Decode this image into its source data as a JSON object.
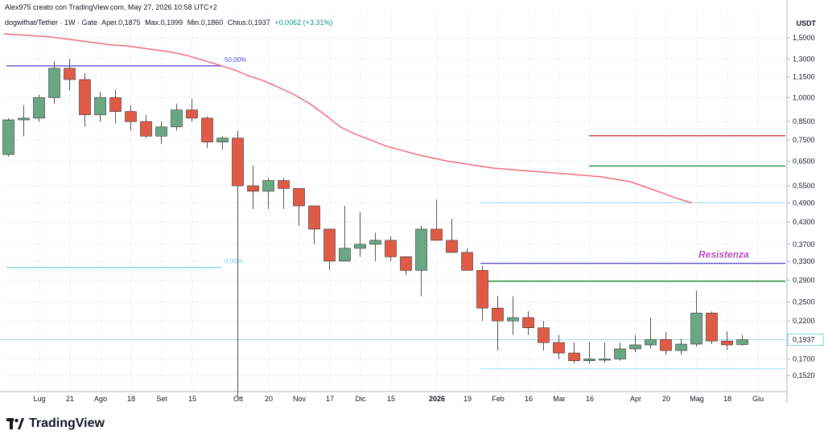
{
  "header": {
    "credit": "Alex975 creato con TradingView.com, May 27, 2026 10:58 UTC+2"
  },
  "symbol": {
    "name": "dogwifhat/Tether · 1W · Gate",
    "open_label": "O",
    "open_value": "Aper.0,1875",
    "high_label": "H",
    "high_value": "Max.0,1999",
    "low_label": "L",
    "low_value": "Min.0,1860",
    "close_label": "C",
    "close_value": "Chius.0,1937",
    "change": "+0,0062 (+3,31%)"
  },
  "currency": "USDT",
  "logo_text": "TradingView",
  "colors": {
    "up": "#6aa784",
    "down": "#e05a45",
    "ma": "#f26b78",
    "fib_purple": "#5b4fc9",
    "fib_cyan": "#7fd6e8",
    "resistance_red": "#d32f2f",
    "resistance_green": "#2e8b3a",
    "annotation": "#b84fc4",
    "price_label_bg": "#ffffff"
  },
  "chart_data": {
    "type": "candlestick",
    "interval": "1W",
    "scale": "log",
    "y_ticks": [
      "1,5000",
      "1,3000",
      "1,1500",
      "1,0000",
      "0,8500",
      "0,7500",
      "0,6500",
      "0,5500",
      "0,4900",
      "0,4300",
      "0,3700",
      "0,3300",
      "0,2900",
      "0,2500",
      "0,2200",
      "0,1700",
      "0,1520"
    ],
    "x_ticks": [
      {
        "label": "Lug",
        "bold": false
      },
      {
        "label": "21",
        "bold": false
      },
      {
        "label": "Ago",
        "bold": false
      },
      {
        "label": "18",
        "bold": false
      },
      {
        "label": "Set",
        "bold": false
      },
      {
        "label": "15",
        "bold": false
      },
      {
        "label": "Ott",
        "bold": false
      },
      {
        "label": "20",
        "bold": false
      },
      {
        "label": "Nov",
        "bold": false
      },
      {
        "label": "17",
        "bold": false
      },
      {
        "label": "Dic",
        "bold": false
      },
      {
        "label": "15",
        "bold": false
      },
      {
        "label": "2026",
        "bold": true
      },
      {
        "label": "19",
        "bold": false
      },
      {
        "label": "Feb",
        "bold": false
      },
      {
        "label": "16",
        "bold": false
      },
      {
        "label": "Mar",
        "bold": false
      },
      {
        "label": "16",
        "bold": false
      },
      {
        "label": "Apr",
        "bold": false
      },
      {
        "label": "20",
        "bold": false
      },
      {
        "label": "Mag",
        "bold": false
      },
      {
        "label": "18",
        "bold": false
      },
      {
        "label": "Giu",
        "bold": false
      }
    ],
    "current_price": "0,1937",
    "candles": [
      {
        "o": 0.68,
        "h": 0.87,
        "l": 0.67,
        "c": 0.86
      },
      {
        "o": 0.86,
        "h": 0.95,
        "l": 0.77,
        "c": 0.87
      },
      {
        "o": 0.87,
        "h": 1.02,
        "l": 0.85,
        "c": 1.0
      },
      {
        "o": 1.0,
        "h": 1.28,
        "l": 0.96,
        "c": 1.22
      },
      {
        "o": 1.22,
        "h": 1.3,
        "l": 1.05,
        "c": 1.13
      },
      {
        "o": 1.13,
        "h": 1.18,
        "l": 0.82,
        "c": 0.89
      },
      {
        "o": 0.89,
        "h": 1.04,
        "l": 0.85,
        "c": 1.0
      },
      {
        "o": 1.0,
        "h": 1.06,
        "l": 0.84,
        "c": 0.91
      },
      {
        "o": 0.91,
        "h": 0.95,
        "l": 0.8,
        "c": 0.85
      },
      {
        "o": 0.85,
        "h": 0.89,
        "l": 0.76,
        "c": 0.77
      },
      {
        "o": 0.77,
        "h": 0.85,
        "l": 0.73,
        "c": 0.82
      },
      {
        "o": 0.82,
        "h": 0.96,
        "l": 0.8,
        "c": 0.92
      },
      {
        "o": 0.92,
        "h": 0.99,
        "l": 0.85,
        "c": 0.87
      },
      {
        "o": 0.87,
        "h": 0.88,
        "l": 0.71,
        "c": 0.74
      },
      {
        "o": 0.74,
        "h": 0.77,
        "l": 0.7,
        "c": 0.76
      },
      {
        "o": 0.76,
        "h": 0.8,
        "l": 0.13,
        "c": 0.55
      },
      {
        "o": 0.55,
        "h": 0.63,
        "l": 0.47,
        "c": 0.53
      },
      {
        "o": 0.53,
        "h": 0.58,
        "l": 0.47,
        "c": 0.57
      },
      {
        "o": 0.57,
        "h": 0.58,
        "l": 0.47,
        "c": 0.54
      },
      {
        "o": 0.54,
        "h": 0.54,
        "l": 0.42,
        "c": 0.48
      },
      {
        "o": 0.48,
        "h": 0.48,
        "l": 0.37,
        "c": 0.41
      },
      {
        "o": 0.41,
        "h": 0.41,
        "l": 0.31,
        "c": 0.33
      },
      {
        "o": 0.33,
        "h": 0.48,
        "l": 0.33,
        "c": 0.36
      },
      {
        "o": 0.36,
        "h": 0.46,
        "l": 0.34,
        "c": 0.37
      },
      {
        "o": 0.37,
        "h": 0.4,
        "l": 0.33,
        "c": 0.38
      },
      {
        "o": 0.38,
        "h": 0.39,
        "l": 0.33,
        "c": 0.34
      },
      {
        "o": 0.34,
        "h": 0.34,
        "l": 0.3,
        "c": 0.31
      },
      {
        "o": 0.31,
        "h": 0.42,
        "l": 0.26,
        "c": 0.41
      },
      {
        "o": 0.41,
        "h": 0.5,
        "l": 0.38,
        "c": 0.38
      },
      {
        "o": 0.38,
        "h": 0.44,
        "l": 0.35,
        "c": 0.35
      },
      {
        "o": 0.35,
        "h": 0.36,
        "l": 0.31,
        "c": 0.31
      },
      {
        "o": 0.31,
        "h": 0.32,
        "l": 0.22,
        "c": 0.24
      },
      {
        "o": 0.24,
        "h": 0.26,
        "l": 0.18,
        "c": 0.22
      },
      {
        "o": 0.22,
        "h": 0.26,
        "l": 0.2,
        "c": 0.225
      },
      {
        "o": 0.225,
        "h": 0.235,
        "l": 0.2,
        "c": 0.21
      },
      {
        "o": 0.21,
        "h": 0.22,
        "l": 0.18,
        "c": 0.19
      },
      {
        "o": 0.19,
        "h": 0.2,
        "l": 0.17,
        "c": 0.177
      },
      {
        "o": 0.177,
        "h": 0.19,
        "l": 0.165,
        "c": 0.168
      },
      {
        "o": 0.168,
        "h": 0.19,
        "l": 0.165,
        "c": 0.17
      },
      {
        "o": 0.17,
        "h": 0.19,
        "l": 0.166,
        "c": 0.17
      },
      {
        "o": 0.17,
        "h": 0.19,
        "l": 0.168,
        "c": 0.182
      },
      {
        "o": 0.182,
        "h": 0.2,
        "l": 0.178,
        "c": 0.187
      },
      {
        "o": 0.187,
        "h": 0.225,
        "l": 0.183,
        "c": 0.194
      },
      {
        "o": 0.194,
        "h": 0.204,
        "l": 0.175,
        "c": 0.18
      },
      {
        "o": 0.18,
        "h": 0.195,
        "l": 0.175,
        "c": 0.188
      },
      {
        "o": 0.188,
        "h": 0.27,
        "l": 0.185,
        "c": 0.232
      },
      {
        "o": 0.232,
        "h": 0.235,
        "l": 0.188,
        "c": 0.192
      },
      {
        "o": 0.192,
        "h": 0.205,
        "l": 0.181,
        "c": 0.187
      },
      {
        "o": 0.1875,
        "h": 0.1999,
        "l": 0.186,
        "c": 0.1937
      }
    ],
    "moving_average": [
      1.54,
      1.53,
      1.52,
      1.51,
      1.49,
      1.47,
      1.45,
      1.43,
      1.42,
      1.4,
      1.38,
      1.36,
      1.33,
      1.29,
      1.25,
      1.21,
      1.16,
      1.12,
      1.07,
      1.02,
      0.96,
      0.89,
      0.82,
      0.78,
      0.75,
      0.72,
      0.7,
      0.68,
      0.665,
      0.65,
      0.64,
      0.63,
      0.62,
      0.615,
      0.61,
      0.605,
      0.6,
      0.595,
      0.59,
      0.585,
      0.575,
      0.565,
      0.545,
      0.525,
      0.505,
      0.49
    ],
    "fib_levels": [
      {
        "label": "50,00%",
        "price": 1.24
      },
      {
        "label": "0,00%",
        "price": 0.316
      }
    ],
    "resistance_label": "Resistenza",
    "horizontal_lines": [
      {
        "price": 0.772,
        "color": "red"
      },
      {
        "price": 0.629,
        "color": "green"
      },
      {
        "price": 0.491,
        "color": "cyan"
      },
      {
        "price": 0.325,
        "color": "purple"
      },
      {
        "price": 0.288,
        "color": "green"
      },
      {
        "price": 0.1937,
        "color": "cyan"
      },
      {
        "price": 0.159,
        "color": "cyan"
      }
    ]
  }
}
